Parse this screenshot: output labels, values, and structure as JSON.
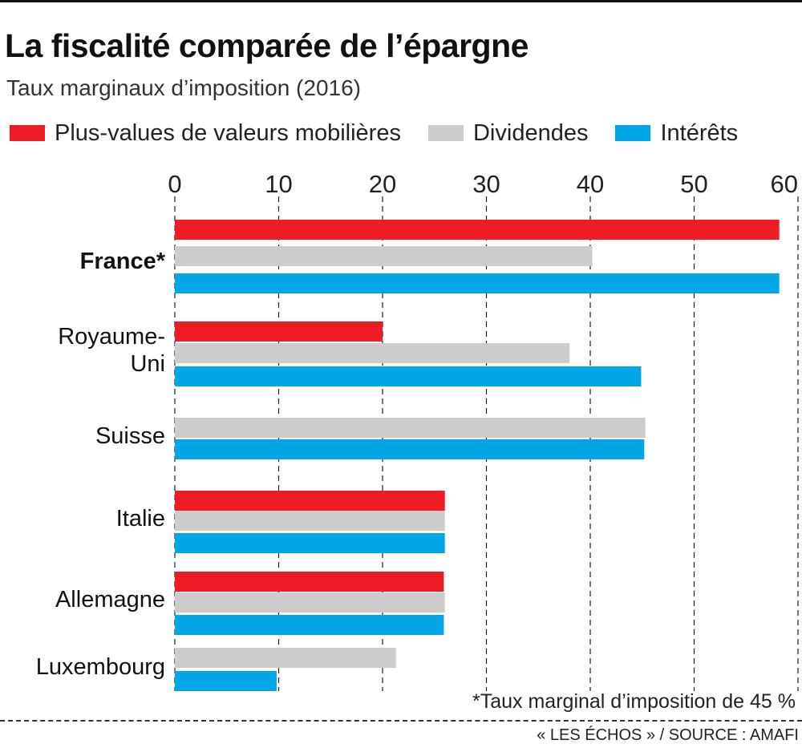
{
  "header": {
    "title": "La fiscalité comparée de l’épargne",
    "subtitle": "Taux marginaux d’imposition (2016)"
  },
  "legend": [
    {
      "label": "Plus-values de valeurs mobilières",
      "color": "#ee1c25"
    },
    {
      "label": "Dividendes",
      "color": "#cccccc"
    },
    {
      "label": "Intérêts",
      "color": "#00a6e6"
    }
  ],
  "countries": [
    {
      "name": "France*",
      "bold": true
    },
    {
      "name": "Royaume-\nUni",
      "bold": false
    },
    {
      "name": "Suisse",
      "bold": false
    },
    {
      "name": "Italie",
      "bold": false
    },
    {
      "name": "Allemagne",
      "bold": false
    },
    {
      "name": "Luxembourg",
      "bold": false
    }
  ],
  "chart_data": {
    "type": "bar",
    "orientation": "horizontal",
    "title": "La fiscalité comparée de l’épargne",
    "subtitle": "Taux marginaux d’imposition (2016)",
    "categories": [
      "France*",
      "Royaume-Uni",
      "Suisse",
      "Italie",
      "Allemagne",
      "Luxembourg"
    ],
    "series": [
      {
        "name": "Plus-values de valeurs mobilières",
        "color": "#ee1c25",
        "values": [
          58.2,
          20,
          null,
          26,
          25.9,
          null
        ]
      },
      {
        "name": "Dividendes",
        "color": "#cccccc",
        "values": [
          40.2,
          38,
          45.3,
          26,
          26,
          21.3
        ]
      },
      {
        "name": "Intérêts",
        "color": "#00a6e6",
        "values": [
          58.2,
          44.9,
          45.2,
          26,
          25.9,
          9.8
        ]
      }
    ],
    "xlim": [
      0,
      60
    ],
    "xticks": [
      "0",
      "10",
      "20",
      "30",
      "40",
      "50",
      "60"
    ],
    "axis_position": "top",
    "grid": "vertical dashed",
    "legend_position": "top"
  },
  "footnote": "*Taux marginal d’imposition de 45 %",
  "source": "« LES ÉCHOS » / SOURCE : AMAFI"
}
